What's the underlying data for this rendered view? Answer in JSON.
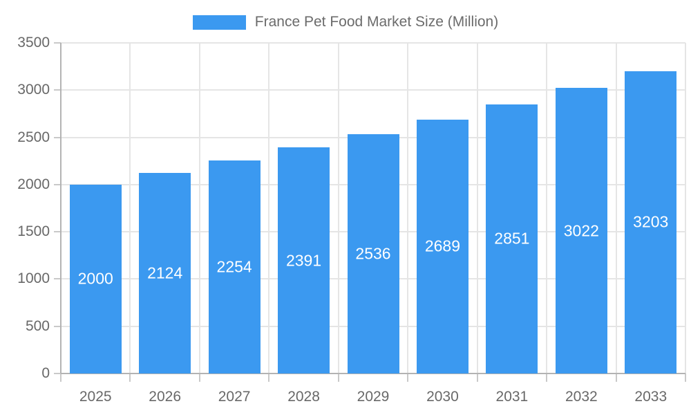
{
  "chart_data": {
    "type": "bar",
    "title": "France Pet Food Market Size (Million)",
    "categories": [
      "2025",
      "2026",
      "2027",
      "2028",
      "2029",
      "2030",
      "2031",
      "2032",
      "2033"
    ],
    "values": [
      2000,
      2124,
      2254,
      2391,
      2536,
      2689,
      2851,
      3022,
      3203
    ],
    "xlabel": "",
    "ylabel": "",
    "ylim": [
      0,
      3500
    ],
    "ytick_step": 500,
    "grid": true,
    "legend_position": "top",
    "bar_labels_inside": true,
    "colors": {
      "bar": "#3b99f0",
      "bar_label": "#ffffff",
      "grid": "#e5e5e5",
      "axis": "#b3b3b3",
      "tick": "#c9c9c9",
      "text": "#686868",
      "legend_text": "#6b6b6b"
    }
  }
}
